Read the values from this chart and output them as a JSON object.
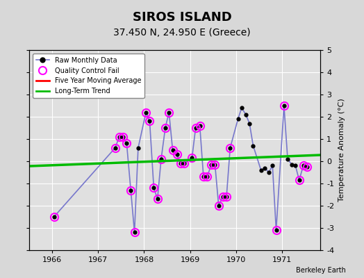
{
  "title": "SIROS ISLAND",
  "subtitle": "37.450 N, 24.950 E (Greece)",
  "ylabel": "Temperature Anomaly (°C)",
  "attribution": "Berkeley Earth",
  "xlim": [
    1965.5,
    1971.83
  ],
  "ylim": [
    -4,
    5
  ],
  "yticks": [
    -4,
    -3,
    -2,
    -1,
    0,
    1,
    2,
    3,
    4,
    5
  ],
  "xticks": [
    1966,
    1967,
    1968,
    1969,
    1970,
    1971
  ],
  "background_color": "#d8d8d8",
  "plot_background": "#e0e0e0",
  "raw_x": [
    1966.04,
    1967.37,
    1967.46,
    1967.54,
    1967.62,
    1967.71,
    1967.79,
    1967.87,
    1968.04,
    1968.12,
    1968.21,
    1968.29,
    1968.37,
    1968.46,
    1968.54,
    1968.62,
    1968.71,
    1968.79,
    1968.87,
    1969.04,
    1969.12,
    1969.21,
    1969.29,
    1969.37,
    1969.46,
    1969.54,
    1969.62,
    1969.71,
    1969.79,
    1969.87,
    1970.04,
    1970.12,
    1970.21,
    1970.29,
    1970.37,
    1970.54,
    1970.62,
    1970.71,
    1970.79,
    1970.87,
    1971.04,
    1971.12,
    1971.21,
    1971.29,
    1971.37,
    1971.46,
    1971.54
  ],
  "raw_y": [
    -2.5,
    0.6,
    1.1,
    1.1,
    0.8,
    -1.3,
    -3.2,
    0.6,
    2.2,
    1.8,
    -1.2,
    -1.7,
    0.1,
    1.5,
    2.2,
    0.5,
    0.3,
    -0.1,
    -0.1,
    0.15,
    1.5,
    1.6,
    -0.7,
    -0.7,
    -0.15,
    -0.15,
    -2.0,
    -1.6,
    -1.6,
    0.6,
    1.9,
    2.4,
    2.1,
    1.7,
    0.7,
    -0.4,
    -0.3,
    -0.5,
    -0.2,
    -3.1,
    2.5,
    0.1,
    -0.15,
    -0.2,
    -0.85,
    -0.2,
    -0.25
  ],
  "qc_fail_indices": [
    0,
    1,
    2,
    3,
    4,
    5,
    6,
    8,
    9,
    10,
    11,
    12,
    13,
    14,
    15,
    16,
    17,
    18,
    19,
    20,
    21,
    22,
    23,
    24,
    25,
    26,
    27,
    28,
    29,
    39,
    40,
    44,
    45,
    46
  ],
  "trend_x": [
    1965.5,
    1971.83
  ],
  "trend_y": [
    -0.22,
    0.28
  ],
  "line_color": "#7777cc",
  "dot_color": "#000000",
  "qc_color": "#ff00ff",
  "trend_color": "#00bb00",
  "moving_avg_color": "#ff0000",
  "grid_color": "#ffffff",
  "title_fontsize": 13,
  "subtitle_fontsize": 10
}
